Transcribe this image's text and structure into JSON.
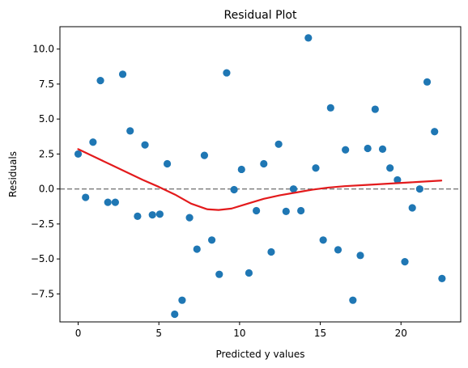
{
  "chart_data": {
    "type": "scatter",
    "title": "Residual Plot",
    "xlabel": "Predicted y values",
    "ylabel": "Residuals",
    "xlim": [
      -1.13,
      23.7
    ],
    "ylim": [
      -9.5,
      11.6
    ],
    "xticks": [
      0,
      5,
      10,
      15,
      20
    ],
    "yticks": [
      -7.5,
      -5.0,
      -2.5,
      0.0,
      2.5,
      5.0,
      7.5,
      10.0
    ],
    "xtick_labels": [
      "0",
      "5",
      "10",
      "15",
      "20"
    ],
    "ytick_labels": [
      "−7.5",
      "−5.0",
      "−2.5",
      "0.0",
      "2.5",
      "5.0",
      "7.5",
      "10.0"
    ],
    "grid": false,
    "reference_line": {
      "y": 0,
      "style": "dashed",
      "color": "#808080"
    },
    "points": {
      "color": "#1f77b4",
      "x": [
        0.0,
        0.46,
        0.92,
        1.38,
        1.84,
        2.3,
        2.76,
        3.22,
        3.68,
        4.14,
        4.6,
        5.06,
        5.52,
        5.98,
        6.44,
        6.9,
        7.36,
        7.82,
        8.28,
        8.74,
        9.2,
        9.66,
        10.12,
        10.58,
        11.04,
        11.5,
        11.96,
        12.42,
        12.88,
        13.34,
        13.8,
        14.26,
        14.72,
        15.18,
        15.64,
        16.1,
        16.56,
        17.02,
        17.48,
        17.94,
        18.4,
        18.86,
        19.32,
        19.78,
        20.24,
        20.7,
        21.16,
        21.62,
        22.08,
        22.54
      ],
      "y": [
        2.5,
        -0.6,
        3.35,
        7.75,
        -0.95,
        -0.95,
        8.2,
        4.15,
        -1.95,
        3.15,
        -1.85,
        -1.8,
        1.8,
        -8.95,
        -7.95,
        -2.05,
        -4.3,
        2.4,
        -3.65,
        -6.1,
        8.3,
        -0.05,
        1.4,
        -6.0,
        -1.55,
        1.8,
        -4.5,
        3.2,
        -1.6,
        0.0,
        -1.55,
        10.8,
        1.5,
        -3.65,
        5.8,
        -4.35,
        2.8,
        -7.95,
        -4.75,
        2.9,
        5.7,
        2.85,
        1.5,
        0.65,
        -5.2,
        -1.35,
        0.0,
        7.65,
        4.1,
        -6.4
      ]
    },
    "trend_line": {
      "color": "#e31a1c",
      "x": [
        0.0,
        1.0,
        2.0,
        3.0,
        4.0,
        5.0,
        6.0,
        7.0,
        8.0,
        8.7,
        9.5,
        10.5,
        11.5,
        12.5,
        13.5,
        14.5,
        15.5,
        16.5,
        18.0,
        19.5,
        21.0,
        22.5
      ],
      "y": [
        2.85,
        2.3,
        1.75,
        1.2,
        0.65,
        0.15,
        -0.4,
        -1.05,
        -1.45,
        -1.5,
        -1.4,
        -1.05,
        -0.7,
        -0.45,
        -0.25,
        -0.05,
        0.1,
        0.2,
        0.3,
        0.4,
        0.5,
        0.6
      ]
    }
  }
}
